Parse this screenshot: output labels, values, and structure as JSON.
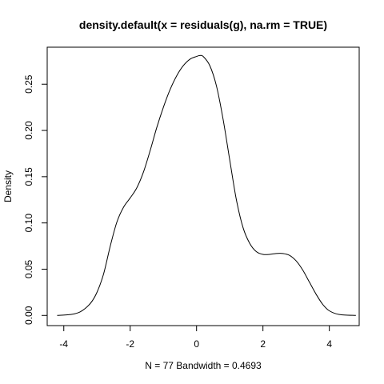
{
  "chart_data": {
    "type": "line",
    "title": "density.default(x = residuals(g), na.rm = TRUE)",
    "xlabel": "N = 77   Bandwidth = 0.4693",
    "ylabel": "Density",
    "xlim": [
      -4.5,
      4.9
    ],
    "ylim": [
      -0.011,
      0.29
    ],
    "x_ticks": [
      -4,
      -2,
      0,
      2,
      4
    ],
    "x_tick_labels": [
      "-4",
      "-2",
      "0",
      "2",
      "4"
    ],
    "y_ticks": [
      0.0,
      0.05,
      0.1,
      0.15,
      0.2,
      0.25
    ],
    "y_tick_labels": [
      "0.00",
      "0.05",
      "0.10",
      "0.15",
      "0.20",
      "0.25"
    ],
    "grid": false,
    "series": [
      {
        "x": [
          -4.2,
          -3.8,
          -3.5,
          -3.2,
          -3.0,
          -2.8,
          -2.6,
          -2.4,
          -2.2,
          -2.0,
          -1.8,
          -1.6,
          -1.4,
          -1.2,
          -1.0,
          -0.8,
          -0.6,
          -0.4,
          -0.2,
          0.0,
          0.1,
          0.2,
          0.4,
          0.6,
          0.8,
          1.0,
          1.2,
          1.4,
          1.6,
          1.8,
          2.0,
          2.2,
          2.4,
          2.6,
          2.8,
          3.0,
          3.2,
          3.4,
          3.6,
          3.8,
          4.0,
          4.3,
          4.8
        ],
        "y": [
          0.0,
          0.001,
          0.004,
          0.013,
          0.025,
          0.045,
          0.075,
          0.101,
          0.117,
          0.127,
          0.138,
          0.155,
          0.178,
          0.203,
          0.225,
          0.244,
          0.259,
          0.27,
          0.277,
          0.28,
          0.281,
          0.28,
          0.27,
          0.248,
          0.212,
          0.168,
          0.125,
          0.095,
          0.078,
          0.069,
          0.066,
          0.066,
          0.067,
          0.067,
          0.065,
          0.059,
          0.049,
          0.036,
          0.023,
          0.012,
          0.005,
          0.001,
          0.0
        ]
      }
    ]
  }
}
